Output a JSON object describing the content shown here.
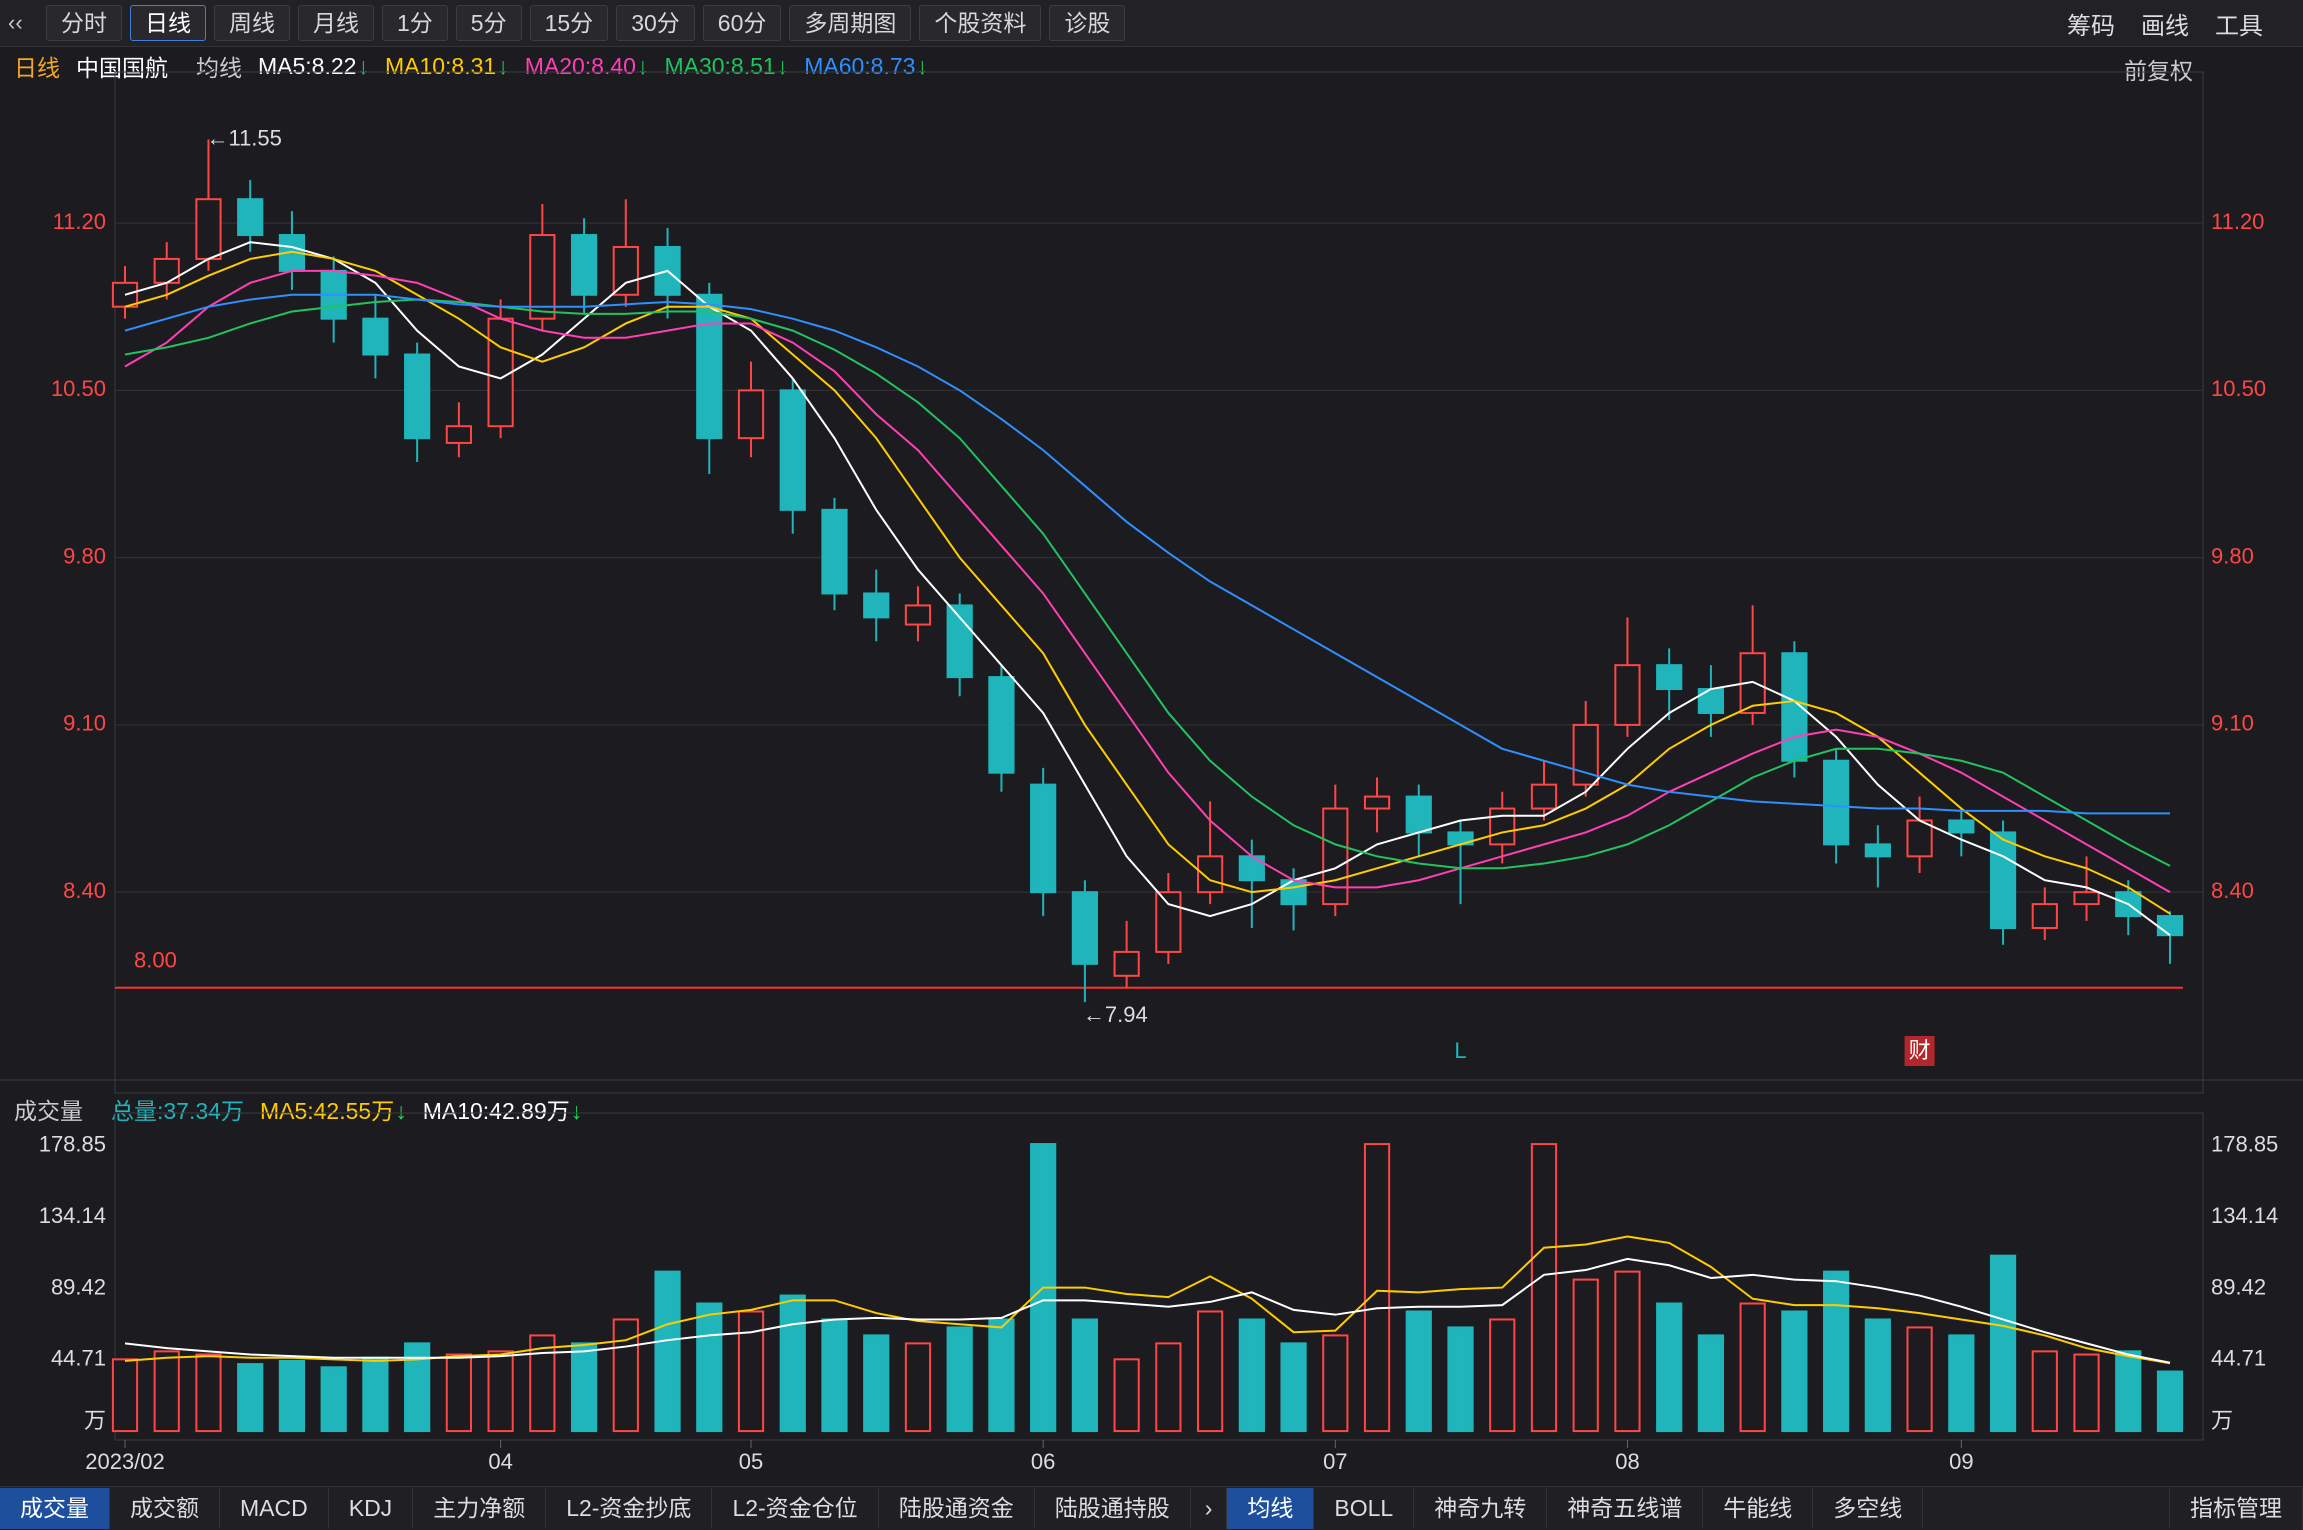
{
  "toolbar": {
    "tabs": [
      "分时",
      "日线",
      "周线",
      "月线",
      "1分",
      "5分",
      "15分",
      "30分",
      "60分",
      "多周期图",
      "个股资料",
      "诊股"
    ],
    "right": [
      "筹码",
      "画线",
      "工具"
    ]
  },
  "info": {
    "period": "日线",
    "stock": "中国国航",
    "ma_label": "均线",
    "restore": "前复权"
  },
  "chart_data": [
    {
      "type": "candlestick",
      "categories": [
        "2023/02",
        null,
        null,
        null,
        null,
        null,
        null,
        null,
        null,
        "04",
        null,
        null,
        null,
        null,
        null,
        "05",
        null,
        null,
        null,
        null,
        null,
        null,
        "06",
        null,
        null,
        null,
        null,
        null,
        null,
        "07",
        null,
        null,
        null,
        null,
        null,
        null,
        "08",
        null,
        null,
        null,
        null,
        null,
        null,
        null,
        "09",
        null,
        null,
        null,
        null,
        null
      ],
      "open": [
        10.85,
        10.95,
        11.05,
        11.3,
        11.15,
        11.0,
        10.8,
        10.65,
        10.28,
        10.35,
        10.8,
        11.15,
        10.9,
        11.1,
        10.9,
        10.3,
        10.5,
        10.0,
        9.65,
        9.52,
        9.6,
        9.3,
        8.85,
        8.4,
        8.05,
        8.15,
        8.4,
        8.55,
        8.45,
        8.35,
        8.75,
        8.8,
        8.65,
        8.6,
        8.75,
        8.85,
        9.1,
        9.35,
        9.25,
        9.15,
        9.4,
        8.95,
        8.6,
        8.55,
        8.7,
        8.65,
        8.25,
        8.35,
        8.4,
        8.3
      ],
      "high": [
        11.02,
        11.12,
        11.55,
        11.38,
        11.25,
        11.06,
        10.9,
        10.7,
        10.45,
        10.88,
        11.28,
        11.22,
        11.3,
        11.18,
        10.95,
        10.62,
        10.55,
        10.05,
        9.75,
        9.68,
        9.65,
        9.35,
        8.92,
        8.45,
        8.28,
        8.48,
        8.78,
        8.62,
        8.5,
        8.85,
        8.88,
        8.85,
        8.7,
        8.82,
        8.95,
        9.2,
        9.55,
        9.42,
        9.35,
        9.6,
        9.45,
        9.0,
        8.68,
        8.8,
        8.75,
        8.7,
        8.42,
        8.55,
        8.45,
        8.32
      ],
      "low": [
        10.8,
        10.88,
        11.0,
        11.08,
        10.92,
        10.7,
        10.55,
        10.2,
        10.22,
        10.3,
        10.75,
        10.82,
        10.85,
        10.8,
        10.15,
        10.22,
        9.9,
        9.58,
        9.45,
        9.45,
        9.22,
        8.82,
        8.3,
        7.94,
        8.0,
        8.1,
        8.35,
        8.25,
        8.24,
        8.3,
        8.65,
        8.55,
        8.35,
        8.52,
        8.7,
        8.8,
        9.05,
        9.12,
        9.05,
        9.1,
        8.88,
        8.52,
        8.42,
        8.48,
        8.55,
        8.18,
        8.2,
        8.28,
        8.22,
        8.1
      ],
      "close": [
        10.95,
        11.05,
        11.3,
        11.15,
        11.0,
        10.8,
        10.65,
        10.3,
        10.35,
        10.8,
        11.15,
        10.9,
        11.1,
        10.9,
        10.3,
        10.5,
        10.0,
        9.65,
        9.55,
        9.6,
        9.3,
        8.9,
        8.4,
        8.1,
        8.15,
        8.4,
        8.55,
        8.45,
        8.35,
        8.75,
        8.8,
        8.65,
        8.6,
        8.75,
        8.85,
        9.1,
        9.35,
        9.25,
        9.15,
        9.4,
        8.95,
        8.6,
        8.55,
        8.7,
        8.65,
        8.25,
        8.35,
        8.4,
        8.3,
        8.22
      ],
      "up_color": "#ff4646",
      "down_color": "#1fb5bb",
      "series": [
        {
          "name": "MA5:8.22",
          "color": "#ffffff",
          "values": [
            10.9,
            10.95,
            11.05,
            11.12,
            11.1,
            11.05,
            10.95,
            10.75,
            10.6,
            10.55,
            10.65,
            10.8,
            10.95,
            11.0,
            10.85,
            10.75,
            10.55,
            10.3,
            10.0,
            9.75,
            9.55,
            9.35,
            9.15,
            8.85,
            8.55,
            8.35,
            8.3,
            8.35,
            8.45,
            8.5,
            8.6,
            8.65,
            8.7,
            8.72,
            8.72,
            8.82,
            9.0,
            9.15,
            9.25,
            9.28,
            9.2,
            9.05,
            8.85,
            8.7,
            8.62,
            8.55,
            8.45,
            8.42,
            8.35,
            8.22
          ]
        },
        {
          "name": "MA10:8.31",
          "color": "#ffcc00",
          "values": [
            10.85,
            10.9,
            10.98,
            11.05,
            11.08,
            11.05,
            11.0,
            10.9,
            10.8,
            10.68,
            10.62,
            10.68,
            10.78,
            10.85,
            10.85,
            10.8,
            10.65,
            10.5,
            10.3,
            10.05,
            9.8,
            9.6,
            9.4,
            9.1,
            8.85,
            8.6,
            8.45,
            8.4,
            8.42,
            8.45,
            8.5,
            8.55,
            8.6,
            8.65,
            8.68,
            8.75,
            8.85,
            9.0,
            9.1,
            9.18,
            9.2,
            9.15,
            9.05,
            8.9,
            8.75,
            8.62,
            8.55,
            8.5,
            8.42,
            8.31
          ]
        },
        {
          "name": "MA20:8.40",
          "color": "#ff3fb4",
          "values": [
            10.6,
            10.7,
            10.85,
            10.95,
            11.0,
            11.0,
            10.98,
            10.95,
            10.88,
            10.8,
            10.75,
            10.72,
            10.72,
            10.75,
            10.78,
            10.78,
            10.7,
            10.58,
            10.4,
            10.25,
            10.05,
            9.85,
            9.65,
            9.4,
            9.15,
            8.9,
            8.7,
            8.55,
            8.45,
            8.42,
            8.42,
            8.45,
            8.5,
            8.55,
            8.6,
            8.65,
            8.72,
            8.82,
            8.9,
            8.98,
            9.05,
            9.08,
            9.05,
            8.98,
            8.9,
            8.8,
            8.7,
            8.6,
            8.5,
            8.4
          ]
        },
        {
          "name": "MA30:8.51",
          "color": "#22c35e",
          "values": [
            10.65,
            10.68,
            10.72,
            10.78,
            10.83,
            10.85,
            10.87,
            10.88,
            10.87,
            10.85,
            10.83,
            10.82,
            10.82,
            10.83,
            10.83,
            10.8,
            10.75,
            10.67,
            10.57,
            10.45,
            10.3,
            10.1,
            9.9,
            9.65,
            9.4,
            9.15,
            8.95,
            8.8,
            8.68,
            8.6,
            8.55,
            8.52,
            8.5,
            8.5,
            8.52,
            8.55,
            8.6,
            8.68,
            8.78,
            8.88,
            8.95,
            9.0,
            9.0,
            8.98,
            8.95,
            8.9,
            8.8,
            8.7,
            8.6,
            8.51
          ]
        },
        {
          "name": "MA60:8.73",
          "color": "#2f8fff",
          "values": [
            10.75,
            10.8,
            10.85,
            10.88,
            10.9,
            10.9,
            10.9,
            10.88,
            10.86,
            10.85,
            10.85,
            10.85,
            10.86,
            10.87,
            10.86,
            10.84,
            10.8,
            10.75,
            10.68,
            10.6,
            10.5,
            10.38,
            10.25,
            10.1,
            9.95,
            9.82,
            9.7,
            9.6,
            9.5,
            9.4,
            9.3,
            9.2,
            9.1,
            9.0,
            8.95,
            8.9,
            8.85,
            8.82,
            8.8,
            8.78,
            8.77,
            8.76,
            8.75,
            8.75,
            8.74,
            8.74,
            8.74,
            8.73,
            8.73,
            8.73
          ]
        }
      ],
      "ylim": [
        7.66,
        11.69
      ],
      "yticks": [
        {
          "value": 8.4,
          "label": "8.40"
        },
        {
          "value": 9.1,
          "label": "9.10"
        },
        {
          "value": 9.8,
          "label": "9.80"
        },
        {
          "value": 10.5,
          "label": "10.50"
        },
        {
          "value": 11.2,
          "label": "11.20"
        }
      ],
      "grid": true,
      "max_price": 11.55,
      "max_at": 2,
      "min_price": 7.94,
      "min_at": 23,
      "support_line": {
        "value": 8,
        "label": "8.00"
      },
      "event_markers": [
        {
          "label": "L",
          "at": 32
        },
        {
          "label": "财",
          "at": 43
        }
      ]
    },
    {
      "type": "bar",
      "title": "成交量",
      "total_label": "总量:37.34万",
      "unit": "万",
      "values": [
        45,
        50,
        48,
        42,
        44,
        40,
        46,
        55,
        48,
        50,
        60,
        55,
        70,
        100,
        80,
        75,
        85,
        70,
        60,
        55,
        65,
        70,
        180,
        70,
        45,
        55,
        75,
        70,
        55,
        60,
        180,
        75,
        65,
        70,
        180,
        95,
        100,
        80,
        60,
        80,
        75,
        100,
        70,
        65,
        60,
        110,
        50,
        48,
        50,
        37.34
      ],
      "series": [
        {
          "name": "MA5:42.55万",
          "color": "#ffcc00",
          "values": [
            44,
            46,
            47,
            46,
            46,
            45,
            44,
            45,
            47,
            48,
            52,
            54,
            57,
            67,
            73,
            76,
            82,
            82,
            74,
            69,
            67,
            65,
            90,
            90,
            86,
            84,
            97,
            83,
            62,
            63,
            88,
            87,
            89,
            90,
            115,
            117,
            122,
            118,
            103,
            83,
            79,
            79,
            77,
            74,
            70,
            66,
            60,
            52,
            47,
            42.55
          ]
        },
        {
          "name": "MA10:42.89万",
          "color": "#ffffff",
          "values": [
            55,
            52,
            50,
            48,
            47,
            46,
            46,
            46,
            46,
            47,
            49,
            50,
            53,
            57,
            60,
            62,
            67,
            70,
            71,
            70,
            70,
            71,
            82,
            82,
            80,
            78,
            81,
            87,
            76,
            73,
            77,
            78,
            78,
            79,
            98,
            101,
            108,
            104,
            96,
            98,
            95,
            94,
            90,
            85,
            78,
            70,
            62,
            55,
            48,
            42.89
          ]
        }
      ],
      "ylim": [
        -5.6,
        188.2
      ],
      "yticks": [
        44.71,
        89.42,
        134.14,
        178.85
      ],
      "grid": false
    }
  ],
  "bottom_tabs": {
    "left": [
      "成交量",
      "成交额",
      "MACD",
      "KDJ",
      "主力净额",
      "L2-资金抄底",
      "L2-资金仓位",
      "陆股通资金",
      "陆股通持股"
    ],
    "right": [
      "均线",
      "BOLL",
      "神奇九转",
      "神奇五线谱",
      "牛能线",
      "多空线"
    ],
    "manage": "指标管理"
  }
}
